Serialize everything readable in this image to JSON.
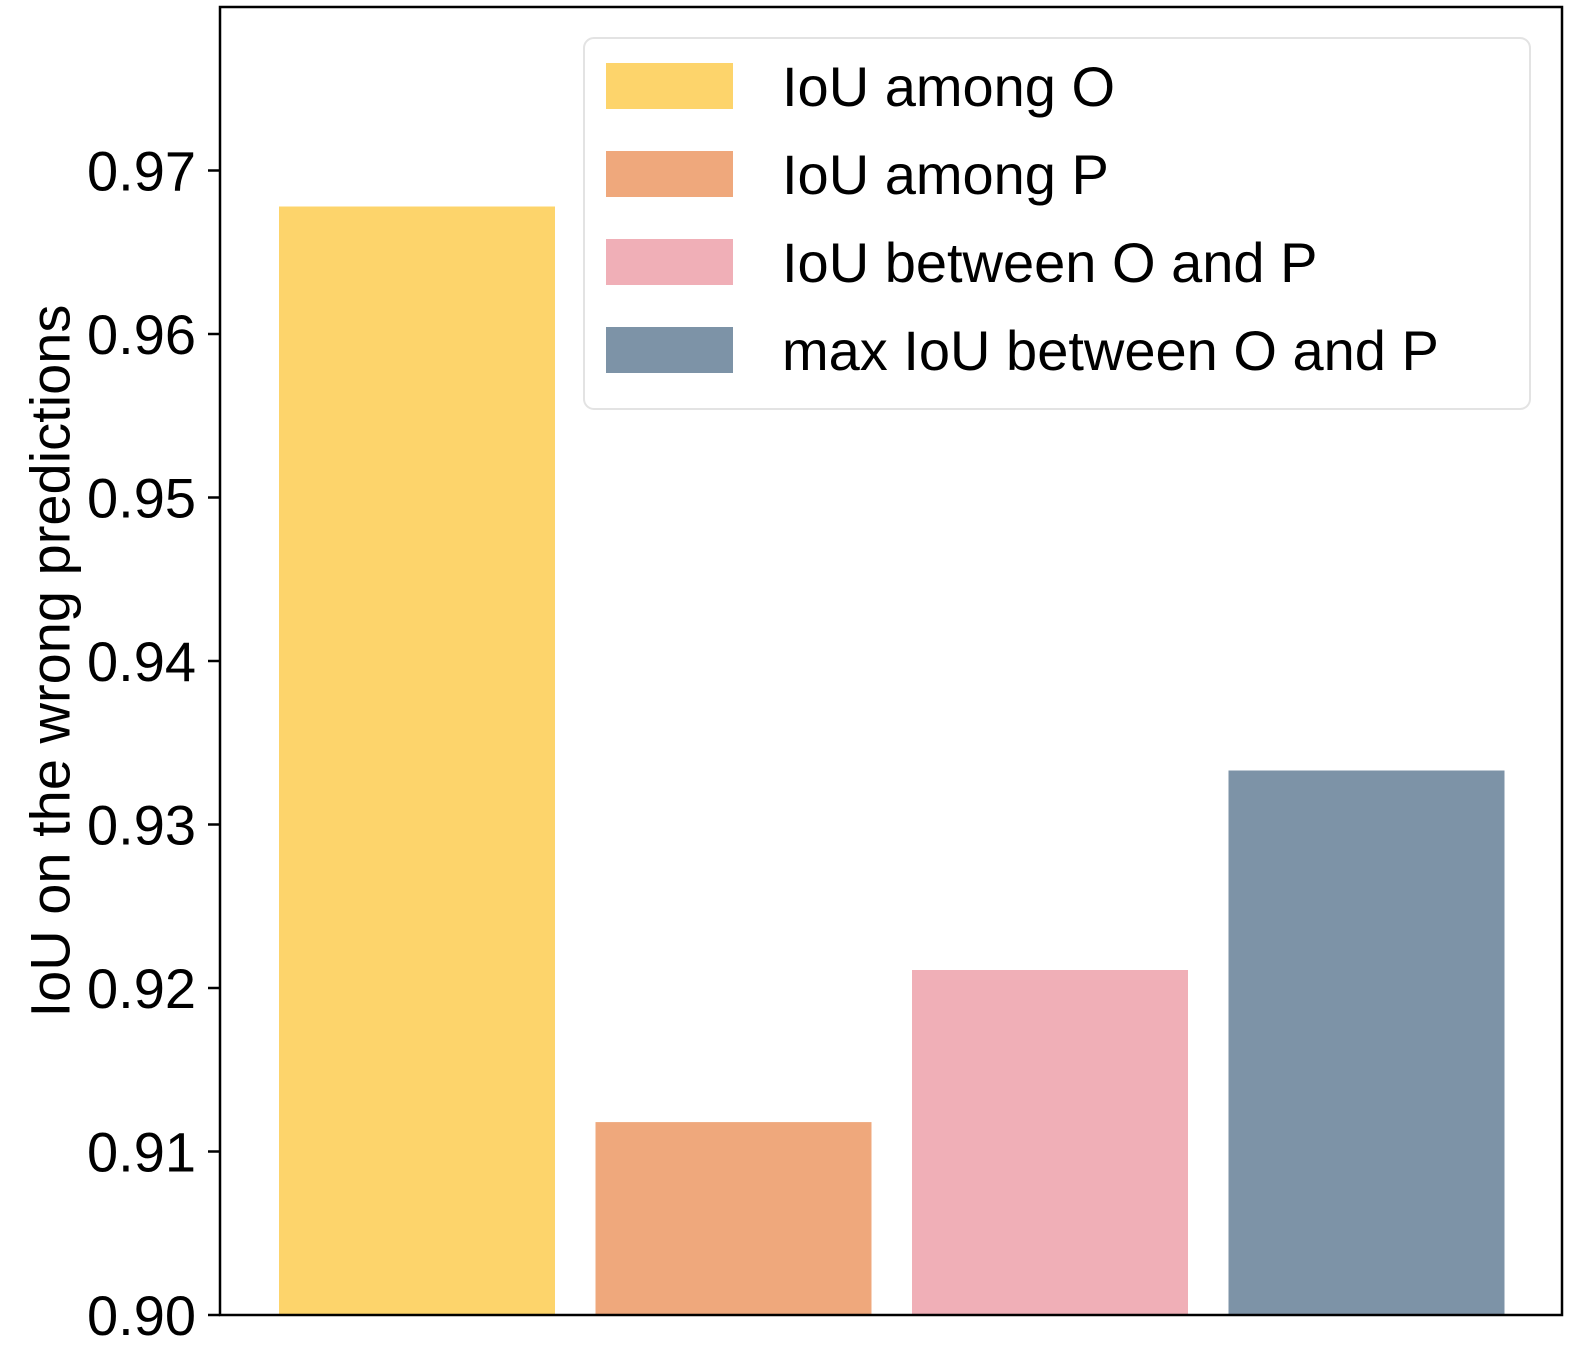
{
  "chart_data": {
    "type": "bar",
    "categories": [
      "IoU among O",
      "IoU among P",
      "IoU between O and P",
      "max IoU between O and P"
    ],
    "values": [
      0.9678,
      0.9118,
      0.9211,
      0.9333
    ],
    "colors": [
      "#FDD46B",
      "#EFA87C",
      "#F0AFB7",
      "#7D93A7"
    ],
    "ylabel": "IoU on the wrong predictions",
    "ylim": [
      0.9,
      0.98
    ],
    "yticks": [
      0.9,
      0.91,
      0.92,
      0.93,
      0.94,
      0.95,
      0.96,
      0.97
    ],
    "ytick_labels": [
      "0.90",
      "0.91",
      "0.92",
      "0.93",
      "0.94",
      "0.95",
      "0.96",
      "0.97"
    ],
    "legend": {
      "placement": "upper-right",
      "entries": [
        "IoU among O",
        "IoU among P",
        "IoU between O and P",
        "max IoU between O and P"
      ]
    },
    "grid": false
  }
}
